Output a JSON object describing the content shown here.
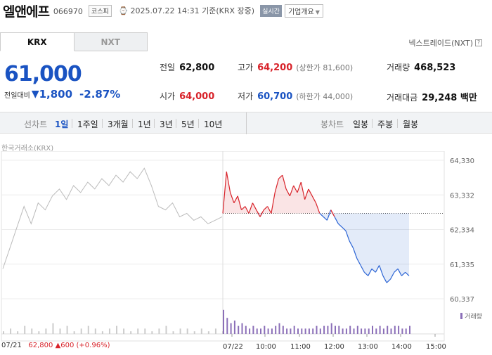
{
  "header": {
    "company": "엘앤에프",
    "code": "066970",
    "market": "코스피",
    "datetime": "2025.07.22 14:31 기준(KRX 장중)",
    "realtime": "실시간",
    "company_info": "기업개요",
    "clock_icon": "clock-icon"
  },
  "tabs": {
    "krx": "KRX",
    "nxt": "NXT",
    "nxt_trade": "넥스트레이드(NXT)",
    "help": "?"
  },
  "price": {
    "current": "61,000",
    "change_label": "전일대비",
    "change": "1,800",
    "change_pct": "-2.87%",
    "direction_icon": "down-triangle-icon",
    "color": "#1a53c2"
  },
  "stats": {
    "prev_close_label": "전일",
    "prev_close": "62,800",
    "high_label": "고가",
    "high": "64,200",
    "upper_limit": "(상한가 81,600)",
    "volume_label": "거래량",
    "volume": "468,523",
    "open_label": "시가",
    "open": "64,000",
    "low_label": "저가",
    "low": "60,700",
    "lower_limit": "(하한가 44,000)",
    "amount_label": "거래대금",
    "amount": "29,248 백만"
  },
  "period": {
    "line_label": "선차트",
    "line_options": [
      "1일",
      "1주일",
      "3개월",
      "1년",
      "3년",
      "5년",
      "10년"
    ],
    "selected": "1일",
    "candle_label": "봉차트",
    "candle_options": [
      "일봉",
      "주봉",
      "월봉"
    ]
  },
  "chart_source": "한국거래소(KRX)",
  "chart_data": {
    "type": "line",
    "y_ticks": [
      "64,330",
      "63,332",
      "62,334",
      "61,335",
      "60,337"
    ],
    "ylim": [
      60337,
      64330
    ],
    "x_labels": [
      "07/21",
      "07/22",
      "10:00",
      "11:00",
      "12:00",
      "13:00",
      "14:00",
      "15:00"
    ],
    "reference_line": 62800,
    "colors": {
      "up": "#d8232a",
      "down": "#2a63d4",
      "prev_day": "#bbbbbb",
      "volume": "#8b6fb8"
    },
    "series": [
      {
        "values": [
          61200,
          61800,
          62400,
          63000,
          62500,
          63100,
          62900,
          63300,
          63500,
          63200,
          63600,
          63400,
          63700,
          63500,
          63800,
          63600,
          63900,
          63700,
          64000,
          63800,
          64100,
          63600,
          63000,
          62900,
          63100,
          62700,
          62800,
          62600,
          62700,
          62500,
          62600,
          62700
        ]
      },
      {
        "values": [
          62800,
          64000,
          63400,
          63100,
          63300,
          62900,
          63000,
          62800,
          63100,
          62900,
          62700,
          62900,
          63000,
          62800,
          63400,
          63800,
          63900,
          63500,
          63300,
          63600,
          63400,
          63700,
          63200,
          63500,
          63300,
          63100,
          62800,
          62700,
          62600,
          62900,
          62700,
          62500,
          62400,
          62300,
          62000,
          61800,
          61500,
          61300,
          61100,
          61000,
          61200,
          61100,
          61300,
          61000,
          60800,
          60900,
          61100,
          61200,
          61000,
          61100,
          61000
        ]
      },
      {
        "values": [
          1,
          2,
          1,
          3,
          2,
          1,
          2,
          4,
          2,
          3,
          1,
          2,
          3,
          2,
          1,
          2,
          3,
          2,
          1,
          2,
          2,
          1,
          2,
          3,
          1,
          2,
          2,
          1,
          2,
          1,
          2,
          1
        ]
      },
      {
        "values": [
          9,
          6,
          4,
          5,
          3,
          4,
          3,
          2,
          3,
          2,
          2,
          3,
          2,
          2,
          3,
          4,
          3,
          2,
          2,
          3,
          2,
          2,
          2,
          2,
          2,
          3,
          2,
          3,
          3,
          4,
          3,
          3,
          2,
          2,
          3,
          2,
          3,
          2,
          2,
          2,
          3,
          2,
          3,
          2,
          3,
          2,
          3,
          3,
          2,
          2,
          3
        ]
      }
    ]
  },
  "volume_legend": "거래량",
  "bottom": {
    "prev_date": "07/21",
    "prev_price": "62,800",
    "prev_change": "▲600",
    "prev_pct": "(+0.96%)"
  }
}
